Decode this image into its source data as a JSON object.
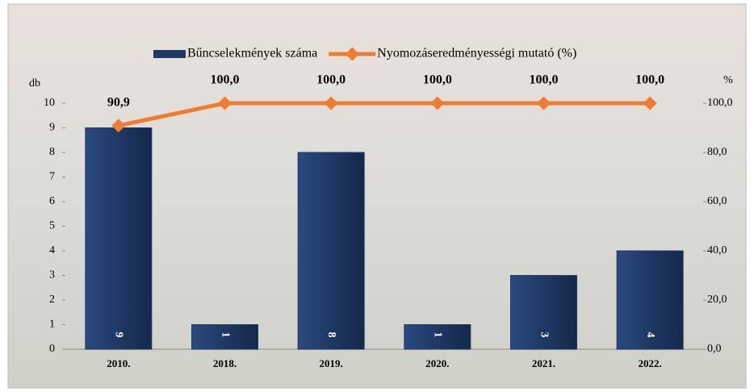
{
  "chart_data": {
    "type": "bar-line",
    "categories": [
      "2010.",
      "2018.",
      "2019.",
      "2020.",
      "2021.",
      "2022."
    ],
    "series": [
      {
        "name": "Bűncselekmények száma",
        "color": "#1f3864",
        "type": "bar",
        "values": [
          9,
          1,
          8,
          1,
          3,
          4
        ]
      },
      {
        "name": "Nyomozáseredményességi mutató (%)",
        "color": "#ed7d31",
        "type": "line",
        "axis": "y2",
        "values": [
          90.9,
          100,
          100,
          100,
          100,
          100
        ],
        "value_labels": [
          "90,9",
          "100,0",
          "100,0",
          "100,0",
          "100,0",
          "100,0"
        ]
      }
    ],
    "y_label": "db",
    "y2_label": "%",
    "ylim": [
      0,
      10
    ],
    "yticks": [
      0,
      1,
      2,
      3,
      4,
      5,
      6,
      7,
      8,
      9,
      10
    ],
    "y2lim": [
      0,
      100
    ],
    "y2ticks": [
      {
        "value": 0,
        "label": "0,0"
      },
      {
        "value": 20,
        "label": "20,0"
      },
      {
        "value": 40,
        "label": "40,0"
      },
      {
        "value": 60,
        "label": "60,0"
      },
      {
        "value": 80,
        "label": "80,0"
      },
      {
        "value": 100,
        "label": "100,0"
      }
    ],
    "legend": "top",
    "grid": false
  }
}
